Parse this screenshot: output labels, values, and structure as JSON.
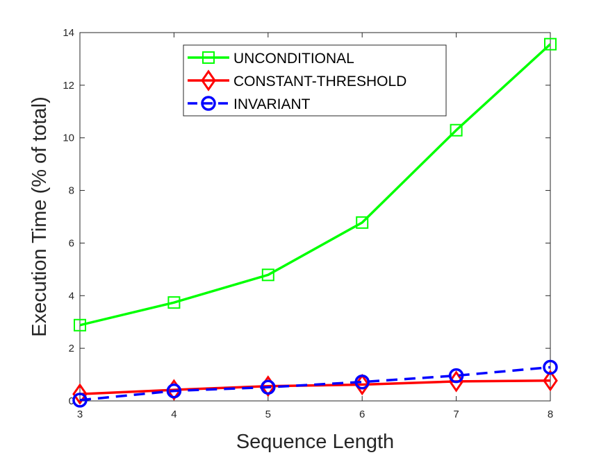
{
  "chart_data": {
    "type": "line",
    "xlabel": "Sequence Length",
    "ylabel": "Execution Time (% of total)",
    "xlim": [
      3,
      8
    ],
    "ylim": [
      0,
      14
    ],
    "xticks": [
      3,
      4,
      5,
      6,
      7,
      8
    ],
    "yticks": [
      0,
      2,
      4,
      6,
      8,
      10,
      12,
      14
    ],
    "grid": false,
    "legend_position": "top-center",
    "x": [
      3,
      4,
      5,
      6,
      7,
      8
    ],
    "series": [
      {
        "name": "UNCONDITIONAL",
        "values": [
          2.88,
          3.74,
          4.79,
          6.78,
          10.29,
          13.56
        ],
        "color": "#00ff00",
        "marker": "square",
        "line_style": "solid"
      },
      {
        "name": "CONSTANT-THRESHOLD",
        "values": [
          0.26,
          0.42,
          0.56,
          0.62,
          0.74,
          0.77
        ],
        "color": "#ff0000",
        "marker": "diamond",
        "line_style": "solid"
      },
      {
        "name": "INVARIANT",
        "values": [
          0.03,
          0.38,
          0.52,
          0.72,
          0.96,
          1.28
        ],
        "color": "#0000ff",
        "marker": "circle",
        "line_style": "dashed"
      }
    ]
  }
}
